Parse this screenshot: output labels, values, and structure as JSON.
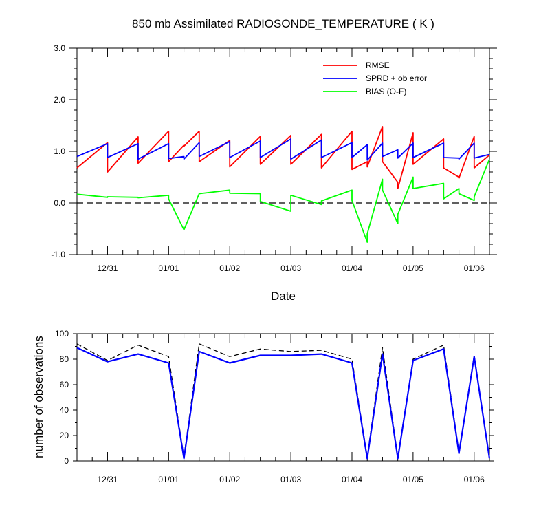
{
  "chart_data": [
    {
      "type": "line",
      "title": "850 mb Assimilated RADIOSONDE_TEMPERATURE ( K )",
      "xlabel": "Date",
      "ylabel": "",
      "ylim": [
        -1.0,
        3.0
      ],
      "yticks": [
        "-1.0",
        "0.0",
        "1.0",
        "2.0",
        "3.0"
      ],
      "xticks": [
        "12/31",
        "01/01",
        "01/02",
        "01/03",
        "01/04",
        "01/05",
        "01/06"
      ],
      "legend_position": "top-right",
      "zero_line": "dashed",
      "series": [
        {
          "name": "RMSE",
          "color": "#ff0000",
          "points": [
            [
              30.5,
              0.68
            ],
            [
              31.0,
              1.17
            ],
            [
              31.0,
              0.6
            ],
            [
              31.5,
              1.28
            ],
            [
              31.5,
              0.77
            ],
            [
              32.0,
              1.39
            ],
            [
              32.0,
              0.8
            ],
            [
              32.25,
              1.12
            ],
            [
              32.25,
              1.1
            ],
            [
              32.5,
              1.39
            ],
            [
              32.5,
              0.8
            ],
            [
              33.0,
              1.21
            ],
            [
              33.0,
              0.7
            ],
            [
              33.5,
              1.29
            ],
            [
              33.5,
              0.75
            ],
            [
              34.0,
              1.31
            ],
            [
              34.0,
              0.75
            ],
            [
              34.5,
              1.33
            ],
            [
              34.5,
              0.68
            ],
            [
              35.0,
              1.39
            ],
            [
              35.0,
              0.65
            ],
            [
              35.25,
              0.8
            ],
            [
              35.25,
              0.7
            ],
            [
              35.5,
              1.48
            ],
            [
              35.5,
              0.8
            ],
            [
              35.75,
              0.4
            ],
            [
              35.75,
              0.28
            ],
            [
              36.0,
              1.36
            ],
            [
              36.0,
              0.75
            ],
            [
              36.5,
              1.24
            ],
            [
              36.5,
              0.68
            ],
            [
              36.75,
              0.5
            ],
            [
              36.75,
              0.48
            ],
            [
              37.0,
              1.29
            ],
            [
              37.0,
              0.68
            ],
            [
              37.25,
              0.93
            ]
          ]
        },
        {
          "name": "SPRD + ob error",
          "color": "#0000ff",
          "points": [
            [
              30.5,
              0.9
            ],
            [
              31.0,
              1.15
            ],
            [
              31.0,
              0.88
            ],
            [
              31.5,
              1.15
            ],
            [
              31.5,
              0.85
            ],
            [
              32.0,
              1.15
            ],
            [
              32.0,
              0.86
            ],
            [
              32.25,
              0.9
            ],
            [
              32.25,
              0.85
            ],
            [
              32.5,
              1.17
            ],
            [
              32.5,
              0.9
            ],
            [
              33.0,
              1.19
            ],
            [
              33.0,
              0.88
            ],
            [
              33.5,
              1.2
            ],
            [
              33.5,
              0.88
            ],
            [
              34.0,
              1.24
            ],
            [
              34.0,
              0.85
            ],
            [
              34.5,
              1.22
            ],
            [
              34.5,
              0.88
            ],
            [
              35.0,
              1.17
            ],
            [
              35.0,
              0.88
            ],
            [
              35.25,
              1.13
            ],
            [
              35.25,
              0.83
            ],
            [
              35.5,
              1.16
            ],
            [
              35.5,
              0.9
            ],
            [
              35.75,
              1.03
            ],
            [
              35.75,
              0.87
            ],
            [
              36.0,
              1.16
            ],
            [
              36.0,
              0.88
            ],
            [
              36.5,
              1.16
            ],
            [
              36.5,
              0.88
            ],
            [
              36.75,
              0.87
            ],
            [
              36.75,
              0.85
            ],
            [
              37.0,
              1.16
            ],
            [
              37.0,
              0.87
            ],
            [
              37.25,
              0.94
            ]
          ]
        },
        {
          "name": "BIAS (O-F)",
          "color": "#00ff00",
          "points": [
            [
              30.5,
              0.17
            ],
            [
              31.0,
              0.11
            ],
            [
              31.0,
              0.12
            ],
            [
              31.5,
              0.11
            ],
            [
              31.5,
              0.1
            ],
            [
              32.0,
              0.15
            ],
            [
              32.0,
              0.08
            ],
            [
              32.25,
              -0.52
            ],
            [
              32.5,
              0.18
            ],
            [
              33.0,
              0.25
            ],
            [
              33.0,
              0.19
            ],
            [
              33.5,
              0.18
            ],
            [
              33.5,
              0.03
            ],
            [
              34.0,
              -0.16
            ],
            [
              34.0,
              0.15
            ],
            [
              34.5,
              -0.03
            ],
            [
              34.5,
              0.04
            ],
            [
              35.0,
              0.25
            ],
            [
              35.0,
              0.05
            ],
            [
              35.25,
              -0.76
            ],
            [
              35.25,
              -0.6
            ],
            [
              35.5,
              0.46
            ],
            [
              35.5,
              0.25
            ],
            [
              35.75,
              -0.4
            ],
            [
              35.75,
              -0.22
            ],
            [
              36.0,
              0.5
            ],
            [
              36.0,
              0.28
            ],
            [
              36.5,
              0.38
            ],
            [
              36.5,
              0.08
            ],
            [
              36.75,
              0.28
            ],
            [
              36.75,
              0.18
            ],
            [
              37.0,
              0.05
            ],
            [
              37.0,
              0.12
            ],
            [
              37.25,
              0.85
            ]
          ]
        }
      ]
    },
    {
      "type": "line",
      "title": "",
      "xlabel": "",
      "ylabel": "number of observations",
      "ylim": [
        0,
        100
      ],
      "yticks": [
        "0",
        "20",
        "40",
        "60",
        "80",
        "100"
      ],
      "xticks": [
        "12/31",
        "01/01",
        "01/02",
        "01/03",
        "01/04",
        "01/05",
        "01/06"
      ],
      "series": [
        {
          "name": "",
          "style": "dashed",
          "color": "#000000",
          "points": [
            [
              30.5,
              92
            ],
            [
              31.0,
              79
            ],
            [
              31.5,
              91
            ],
            [
              32.0,
              82
            ],
            [
              32.25,
              3
            ],
            [
              32.5,
              92
            ],
            [
              33.0,
              82
            ],
            [
              33.5,
              88
            ],
            [
              34.0,
              86
            ],
            [
              34.5,
              87
            ],
            [
              35.0,
              80
            ],
            [
              35.25,
              3
            ],
            [
              35.5,
              89
            ],
            [
              35.75,
              3
            ],
            [
              36.0,
              80
            ],
            [
              36.5,
              91
            ],
            [
              36.75,
              7
            ],
            [
              37.0,
              83
            ],
            [
              37.25,
              2
            ]
          ]
        },
        {
          "name": "",
          "style": "solid",
          "color": "#0000ff",
          "points": [
            [
              30.5,
              89
            ],
            [
              31.0,
              78
            ],
            [
              31.5,
              84
            ],
            [
              32.0,
              77
            ],
            [
              32.25,
              2
            ],
            [
              32.5,
              86
            ],
            [
              33.0,
              77
            ],
            [
              33.5,
              83
            ],
            [
              34.0,
              83
            ],
            [
              34.5,
              84
            ],
            [
              35.0,
              77
            ],
            [
              35.25,
              2
            ],
            [
              35.5,
              84
            ],
            [
              35.75,
              2
            ],
            [
              36.0,
              79
            ],
            [
              36.5,
              88
            ],
            [
              36.75,
              6
            ],
            [
              37.0,
              82
            ],
            [
              37.25,
              2
            ]
          ]
        }
      ]
    }
  ]
}
